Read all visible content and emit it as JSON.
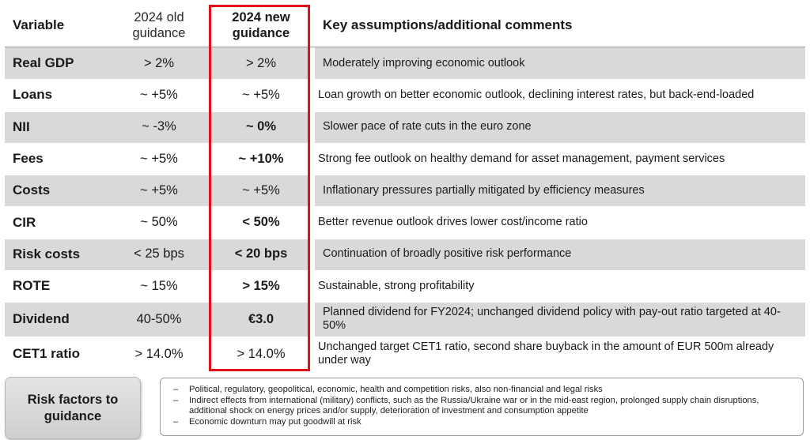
{
  "header": {
    "variable": "Variable",
    "old": "2024 old guidance",
    "new": "2024 new guidance",
    "comments": "Key assumptions/additional comments"
  },
  "rows": [
    {
      "variable": "Real GDP",
      "old": "> 2%",
      "new": "> 2%",
      "new_bold": false,
      "comment": "Moderately improving economic outlook"
    },
    {
      "variable": "Loans",
      "old": "~ +5%",
      "new": "~ +5%",
      "new_bold": false,
      "comment": "Loan growth on better economic outlook, declining interest rates, but back-end-loaded"
    },
    {
      "variable": "NII",
      "old": "~ -3%",
      "new": "~ 0%",
      "new_bold": true,
      "comment": "Slower pace of rate cuts in the euro zone"
    },
    {
      "variable": "Fees",
      "old": "~ +5%",
      "new": "~ +10%",
      "new_bold": true,
      "comment": "Strong fee outlook on healthy demand for asset management, payment services"
    },
    {
      "variable": "Costs",
      "old": "~ +5%",
      "new": "~ +5%",
      "new_bold": false,
      "comment": "Inflationary pressures partially mitigated by efficiency measures"
    },
    {
      "variable": "CIR",
      "old": "~ 50%",
      "new": "< 50%",
      "new_bold": true,
      "comment": "Better revenue outlook drives lower cost/income ratio"
    },
    {
      "variable": "Risk costs",
      "old": "< 25 bps",
      "new": "< 20 bps",
      "new_bold": true,
      "comment": "Continuation of broadly positive risk performance"
    },
    {
      "variable": "ROTE",
      "old": "~ 15%",
      "new": "> 15%",
      "new_bold": true,
      "comment": "Sustainable, strong profitability"
    },
    {
      "variable": "Dividend",
      "old": "40-50%",
      "new": "€3.0",
      "new_bold": true,
      "comment": "Planned dividend for FY2024; unchanged dividend policy with pay-out ratio targeted at 40-50%"
    },
    {
      "variable": "CET1 ratio",
      "old": "> 14.0%",
      "new": "> 14.0%",
      "new_bold": false,
      "comment": "Unchanged target CET1 ratio, second share buyback in the amount of EUR 500m already under way"
    }
  ],
  "risk": {
    "button_label": "Risk factors to guidance",
    "items": [
      "Political, regulatory, geopolitical, economic, health and competition risks, also non-financial and legal risks",
      "Indirect effects from international (military) conflicts, such as the Russia/Ukraine war or in the mid-east region, prolonged supply chain disruptions, additional shock on energy prices and/or supply, deterioration of investment and consumption appetite",
      "Economic downturn may put goodwill at risk"
    ]
  },
  "colors": {
    "highlight": "#e3101b",
    "row_shade": "#d9d9d9"
  }
}
